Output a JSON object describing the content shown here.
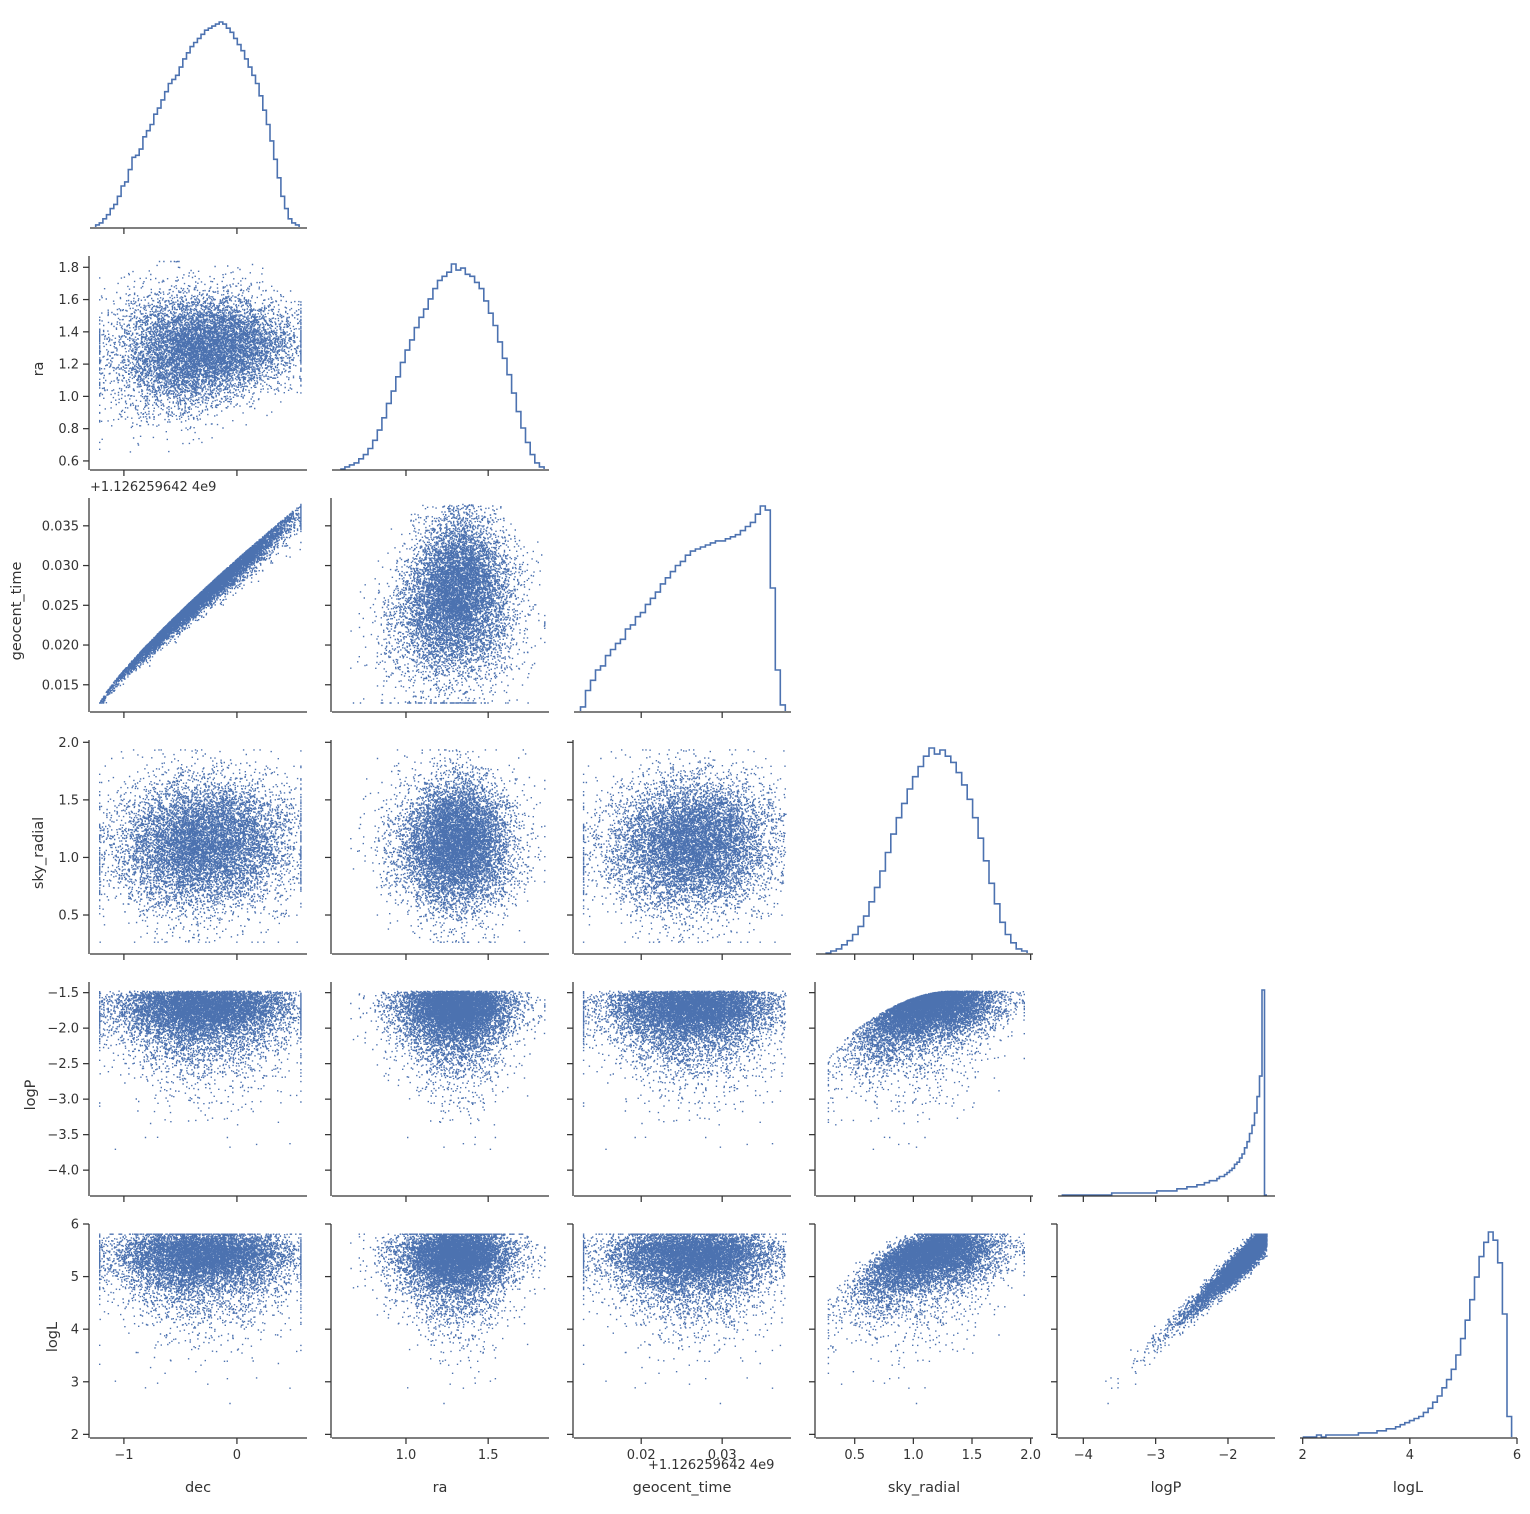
{
  "chart_data": {
    "type": "scatter",
    "layout": "corner-pairplot",
    "marker_color": "#4c72b0",
    "variables": [
      {
        "name": "dec",
        "range": [
          -1.3,
          0.62
        ],
        "ticks": [
          -1,
          0
        ],
        "tick_labels": [
          "−1",
          "0"
        ]
      },
      {
        "name": "ra",
        "range": [
          0.55,
          1.87
        ],
        "ticks": [
          0.6,
          0.8,
          1.0,
          1.2,
          1.4,
          1.6,
          1.8
        ],
        "tick_labels": [
          "0.6",
          "0.8",
          "1.0",
          "1.2",
          "1.4",
          "1.6",
          "1.8"
        ],
        "x_ticks": [
          1.0,
          1.5
        ],
        "x_tick_labels": [
          "1.0",
          "1.5"
        ]
      },
      {
        "name": "geocent_time",
        "range": [
          0.0117,
          0.0385
        ],
        "ticks": [
          0.015,
          0.02,
          0.025,
          0.03,
          0.035
        ],
        "tick_labels": [
          "0.015",
          "0.020",
          "0.025",
          "0.030",
          "0.035"
        ],
        "x_ticks": [
          0.02,
          0.03
        ],
        "x_tick_labels": [
          "0.02",
          "0.03"
        ],
        "offset_text": "+1.126259642 4e9"
      },
      {
        "name": "sky_radial",
        "range": [
          0.17,
          2.02
        ],
        "ticks": [
          0.5,
          1.0,
          1.5,
          2.0
        ],
        "tick_labels": [
          "0.5",
          "1.0",
          "1.5",
          "2.0"
        ]
      },
      {
        "name": "logP",
        "range": [
          -4.35,
          -1.35
        ],
        "ticks": [
          -4.0,
          -3.5,
          -3.0,
          -2.5,
          -2.0,
          -1.5
        ],
        "tick_labels": [
          "−4.0",
          "−3.5",
          "−3.0",
          "−2.5",
          "−2.0",
          "−1.5"
        ],
        "x_ticks": [
          -4,
          -3,
          -2
        ],
        "x_tick_labels": [
          "−4",
          "−3",
          "−2"
        ]
      },
      {
        "name": "logL",
        "range": [
          1.95,
          6.0
        ],
        "ticks": [
          2,
          3,
          4,
          5,
          6
        ],
        "tick_labels": [
          "2",
          "3",
          "4",
          "5",
          "6"
        ],
        "x_ticks": [
          2,
          4,
          6
        ],
        "x_tick_labels": [
          "2",
          "4",
          "6"
        ]
      }
    ],
    "histograms": {
      "dec": {
        "edges_start": -1.25,
        "edges_end": 0.55,
        "counts": [
          1,
          2,
          4,
          6,
          9,
          11,
          15,
          20,
          22,
          28,
          34,
          35,
          38,
          44,
          47,
          50,
          55,
          58,
          62,
          66,
          70,
          72,
          74,
          78,
          82,
          85,
          88,
          90,
          92,
          94,
          96,
          97,
          98,
          99,
          100,
          99,
          97,
          95,
          92,
          89,
          86,
          82,
          78,
          74,
          70,
          64,
          57,
          50,
          42,
          33,
          24,
          15,
          9,
          4,
          2,
          1
        ]
      },
      "ra": {
        "edges_start": 0.6,
        "edges_end": 1.84,
        "counts": [
          0,
          1,
          2,
          3,
          5,
          7,
          10,
          14,
          19,
          25,
          32,
          38,
          45,
          52,
          58,
          63,
          69,
          74,
          78,
          83,
          88,
          92,
          94,
          96,
          100,
          97,
          98,
          95,
          94,
          91,
          88,
          82,
          76,
          70,
          62,
          54,
          46,
          37,
          28,
          20,
          13,
          7,
          3,
          1
        ]
      },
      "geocent_time": {
        "edges_start": 0.0125,
        "edges_end": 0.0378,
        "counts": [
          2,
          10,
          15,
          20,
          22,
          27,
          30,
          33,
          35,
          40,
          42,
          46,
          48,
          52,
          55,
          58,
          62,
          65,
          68,
          71,
          73,
          76,
          78,
          79,
          80,
          81,
          82,
          83,
          83,
          84,
          85,
          86,
          88,
          90,
          92,
          96,
          100,
          98,
          60,
          20,
          3
        ]
      },
      "sky_radial": {
        "edges_start": 0.25,
        "edges_end": 1.97,
        "counts": [
          0,
          1,
          2,
          4,
          6,
          9,
          13,
          18,
          25,
          32,
          40,
          49,
          58,
          66,
          73,
          80,
          86,
          91,
          96,
          100,
          97,
          99,
          96,
          93,
          88,
          82,
          75,
          66,
          56,
          45,
          34,
          24,
          15,
          9,
          5,
          2,
          1
        ]
      },
      "logP": {
        "edges_start": -4.3,
        "edges_end": -1.46,
        "counts": [
          0,
          0,
          0,
          0,
          0,
          0,
          0,
          0,
          0,
          0,
          0,
          0,
          0,
          0,
          0,
          0,
          0,
          0,
          0,
          0,
          1,
          1,
          1,
          1,
          1,
          1,
          1,
          1,
          1,
          1,
          1,
          1,
          1,
          1,
          1,
          1,
          1,
          1,
          2,
          2,
          2,
          2,
          2,
          2,
          2,
          2,
          3,
          3,
          3,
          3,
          4,
          4,
          4,
          4,
          5,
          5,
          5,
          6,
          6,
          7,
          7,
          7,
          8,
          9,
          9,
          10,
          11,
          12,
          13,
          15,
          16,
          18,
          20,
          23,
          26,
          30,
          34,
          40,
          48,
          58,
          100,
          0
        ]
      },
      "logL": {
        "edges_start": 2.0,
        "edges_end": 5.9,
        "counts": [
          0,
          0,
          0,
          1,
          0,
          1,
          1,
          1,
          1,
          1,
          1,
          1,
          2,
          2,
          2,
          2,
          3,
          3,
          4,
          4,
          5,
          6,
          7,
          8,
          9,
          10,
          12,
          14,
          17,
          20,
          24,
          28,
          33,
          40,
          48,
          57,
          67,
          78,
          88,
          95,
          100,
          96,
          85,
          60,
          10
        ]
      }
    }
  }
}
